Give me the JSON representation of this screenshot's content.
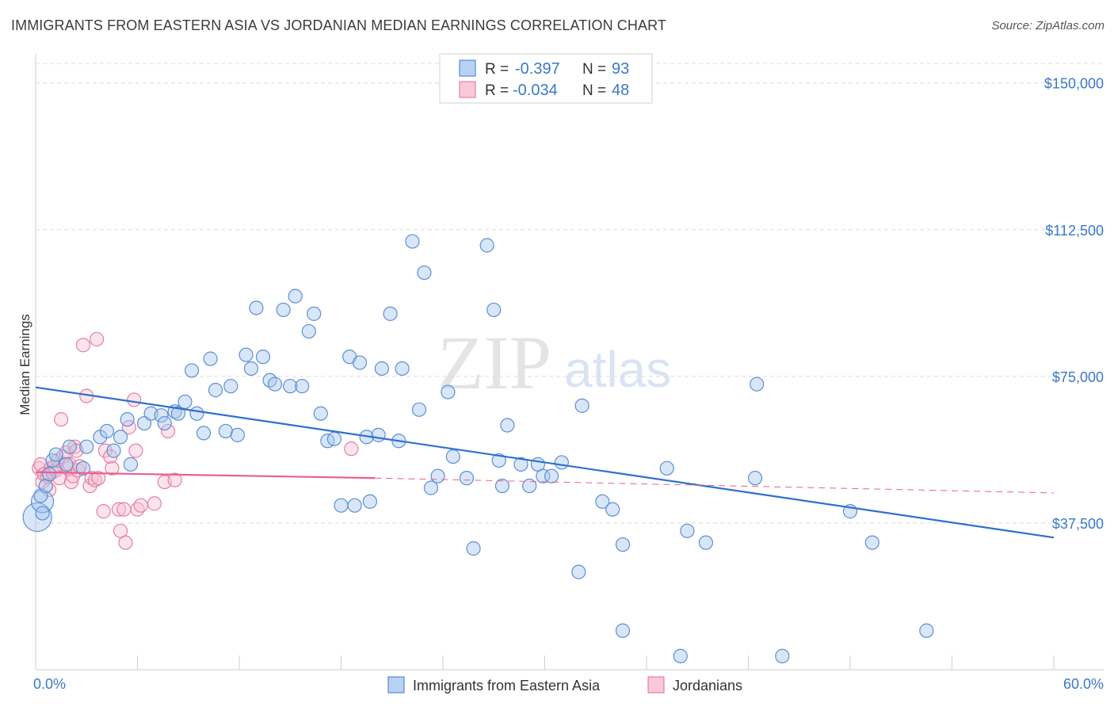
{
  "title": "IMMIGRANTS FROM EASTERN ASIA VS JORDANIAN MEDIAN EARNINGS CORRELATION CHART",
  "source": "Source: ZipAtlas.com",
  "watermark": {
    "zip": "ZIP",
    "atlas": "atlas"
  },
  "colors": {
    "blue": "#3a78c9",
    "blue_fill": "#a9c8f0",
    "pink": "#e86a96",
    "pink_fill": "#f5b8cc",
    "grid": "#dcdcdc"
  },
  "legend": {
    "rows": [
      {
        "r_label": "R =",
        "r_value": "-0.397",
        "n_label": "N =",
        "n_value": "93"
      },
      {
        "r_label": "R =",
        "r_value": "-0.034",
        "n_label": "N =",
        "n_value": "48"
      }
    ]
  },
  "chart_data": {
    "type": "scatter",
    "title": "IMMIGRANTS FROM EASTERN ASIA VS JORDANIAN MEDIAN EARNINGS CORRELATION CHART",
    "xlabel": "",
    "ylabel": "Median Earnings",
    "xlim": [
      0,
      60
    ],
    "ylim": [
      0,
      155000
    ],
    "x_tick_labels": [
      "0.0%",
      "60.0%"
    ],
    "y_ticks": [
      37500,
      75000,
      112500,
      150000
    ],
    "y_tick_labels": [
      "$37,500",
      "$75,000",
      "$112,500",
      "$150,000"
    ],
    "series": [
      {
        "name": "Immigrants from Eastern Asia",
        "color": "#3a78c9",
        "r": -0.397,
        "n": 93,
        "trend": {
          "x": [
            0,
            60
          ],
          "y": [
            72200,
            33800
          ],
          "style": "solid"
        },
        "points": [
          [
            0.3,
            44500
          ],
          [
            0.4,
            40000
          ],
          [
            0.6,
            47000
          ],
          [
            0.8,
            50000
          ],
          [
            1.0,
            53500
          ],
          [
            1.2,
            55000
          ],
          [
            1.8,
            52500
          ],
          [
            2.0,
            57000
          ],
          [
            2.8,
            51500
          ],
          [
            3.0,
            57000
          ],
          [
            3.8,
            59500
          ],
          [
            4.2,
            61000
          ],
          [
            4.6,
            56000
          ],
          [
            5.0,
            59500
          ],
          [
            5.6,
            52500
          ],
          [
            5.4,
            64000
          ],
          [
            6.4,
            63000
          ],
          [
            6.8,
            65500
          ],
          [
            7.4,
            65000
          ],
          [
            7.6,
            63000
          ],
          [
            8.2,
            66000
          ],
          [
            8.4,
            65500
          ],
          [
            8.8,
            68500
          ],
          [
            9.2,
            76500
          ],
          [
            9.5,
            65500
          ],
          [
            9.9,
            60500
          ],
          [
            10.3,
            79500
          ],
          [
            10.6,
            71500
          ],
          [
            11.2,
            61000
          ],
          [
            11.5,
            72500
          ],
          [
            11.9,
            60000
          ],
          [
            12.4,
            80500
          ],
          [
            12.7,
            77000
          ],
          [
            13.0,
            92500
          ],
          [
            13.4,
            80000
          ],
          [
            13.8,
            74000
          ],
          [
            14.1,
            73000
          ],
          [
            14.6,
            92000
          ],
          [
            15.0,
            72500
          ],
          [
            15.3,
            95500
          ],
          [
            15.7,
            72500
          ],
          [
            16.1,
            86500
          ],
          [
            16.4,
            91000
          ],
          [
            16.8,
            65500
          ],
          [
            17.2,
            58500
          ],
          [
            17.6,
            59000
          ],
          [
            18.0,
            42000
          ],
          [
            18.5,
            80000
          ],
          [
            18.8,
            42000
          ],
          [
            19.1,
            78500
          ],
          [
            19.5,
            59500
          ],
          [
            19.7,
            43000
          ],
          [
            20.2,
            60000
          ],
          [
            20.4,
            77000
          ],
          [
            20.9,
            91000
          ],
          [
            21.4,
            58500
          ],
          [
            21.6,
            77000
          ],
          [
            22.2,
            109500
          ],
          [
            22.6,
            66500
          ],
          [
            22.9,
            101500
          ],
          [
            23.3,
            46500
          ],
          [
            23.7,
            49500
          ],
          [
            24.3,
            71000
          ],
          [
            24.6,
            54500
          ],
          [
            25.4,
            49000
          ],
          [
            25.8,
            31000
          ],
          [
            26.6,
            108500
          ],
          [
            27.0,
            92000
          ],
          [
            27.5,
            47000
          ],
          [
            27.8,
            62500
          ],
          [
            27.3,
            53500
          ],
          [
            28.6,
            52500
          ],
          [
            29.1,
            47000
          ],
          [
            29.6,
            52500
          ],
          [
            29.9,
            49500
          ],
          [
            30.4,
            49500
          ],
          [
            31.0,
            53000
          ],
          [
            32.0,
            25000
          ],
          [
            32.2,
            67500
          ],
          [
            33.4,
            43000
          ],
          [
            34.0,
            41000
          ],
          [
            34.6,
            32000
          ],
          [
            34.6,
            10000
          ],
          [
            37.2,
            51500
          ],
          [
            38.0,
            3500
          ],
          [
            38.4,
            35500
          ],
          [
            39.5,
            32500
          ],
          [
            42.4,
            49000
          ],
          [
            42.5,
            73000
          ],
          [
            44.0,
            3500
          ],
          [
            48.0,
            40500
          ],
          [
            49.3,
            32500
          ],
          [
            52.5,
            10000
          ]
        ]
      },
      {
        "name": "Jordanians",
        "color": "#e86a96",
        "r": -0.034,
        "n": 48,
        "trend": {
          "x": [
            0,
            20
          ],
          "y": [
            50500,
            49000
          ],
          "style": "solid"
        },
        "trend_ext": {
          "x": [
            20,
            60
          ],
          "y": [
            49000,
            45200
          ],
          "style": "dashed"
        },
        "points": [
          [
            0.2,
            51500
          ],
          [
            0.3,
            52500
          ],
          [
            0.4,
            48000
          ],
          [
            0.5,
            50000
          ],
          [
            0.7,
            49500
          ],
          [
            0.8,
            46000
          ],
          [
            0.9,
            51500
          ],
          [
            1.0,
            50500
          ],
          [
            1.1,
            52000
          ],
          [
            1.2,
            51000
          ],
          [
            1.3,
            53500
          ],
          [
            1.4,
            49000
          ],
          [
            1.5,
            64000
          ],
          [
            1.6,
            54500
          ],
          [
            1.8,
            55500
          ],
          [
            1.9,
            51500
          ],
          [
            2.0,
            52500
          ],
          [
            2.1,
            48000
          ],
          [
            2.2,
            49500
          ],
          [
            2.3,
            57000
          ],
          [
            2.4,
            56000
          ],
          [
            2.5,
            51000
          ],
          [
            2.6,
            52000
          ],
          [
            2.8,
            83000
          ],
          [
            3.0,
            70000
          ],
          [
            3.2,
            47000
          ],
          [
            3.3,
            49000
          ],
          [
            3.5,
            48500
          ],
          [
            3.6,
            84500
          ],
          [
            3.7,
            49000
          ],
          [
            4.0,
            40500
          ],
          [
            4.1,
            56000
          ],
          [
            4.4,
            54500
          ],
          [
            4.5,
            51500
          ],
          [
            4.9,
            41000
          ],
          [
            5.0,
            35500
          ],
          [
            5.2,
            41000
          ],
          [
            5.3,
            32500
          ],
          [
            5.5,
            62000
          ],
          [
            5.8,
            69000
          ],
          [
            5.9,
            56000
          ],
          [
            6.0,
            41000
          ],
          [
            6.2,
            42000
          ],
          [
            7.0,
            42500
          ],
          [
            7.6,
            48000
          ],
          [
            7.8,
            61000
          ],
          [
            8.2,
            48500
          ],
          [
            18.6,
            56500
          ]
        ]
      }
    ]
  },
  "bottom_legend": [
    "Immigrants from Eastern Asia",
    "Jordanians"
  ]
}
